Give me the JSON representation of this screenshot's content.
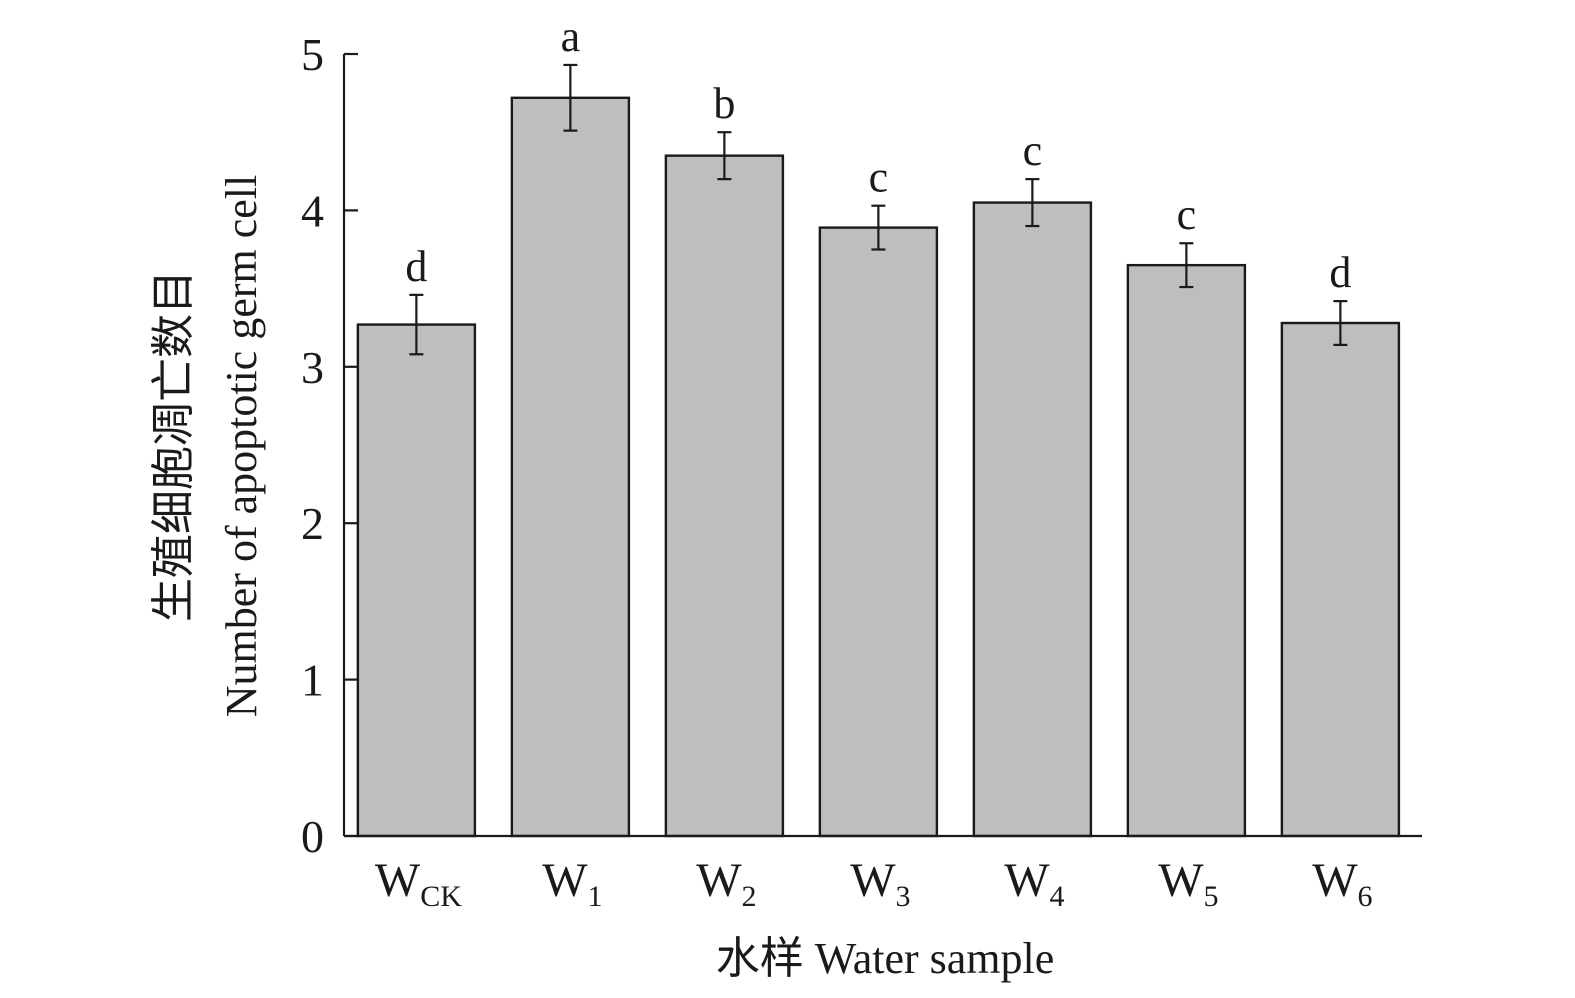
{
  "chart_data": {
    "type": "bar",
    "categories": [
      {
        "main": "W",
        "sub": "CK"
      },
      {
        "main": "W",
        "sub": "1"
      },
      {
        "main": "W",
        "sub": "2"
      },
      {
        "main": "W",
        "sub": "3"
      },
      {
        "main": "W",
        "sub": "4"
      },
      {
        "main": "W",
        "sub": "5"
      },
      {
        "main": "W",
        "sub": "6"
      }
    ],
    "values": [
      3.27,
      4.72,
      4.35,
      3.89,
      4.05,
      3.65,
      3.28
    ],
    "errors": [
      0.19,
      0.21,
      0.15,
      0.14,
      0.15,
      0.14,
      0.14
    ],
    "significance": [
      "d",
      "a",
      "b",
      "c",
      "c",
      "c",
      "d"
    ],
    "xlabel": "水样 Water sample",
    "ylabel_zh": "生殖细胞凋亡数目",
    "ylabel_en": "Number of apoptotic germ cell",
    "ylim": [
      0,
      5
    ],
    "yticks": [
      0,
      1,
      2,
      3,
      4,
      5
    ],
    "bar_color": "#bebebe",
    "edge_color": "#1a1a1a",
    "grid": false,
    "legend": "none"
  }
}
